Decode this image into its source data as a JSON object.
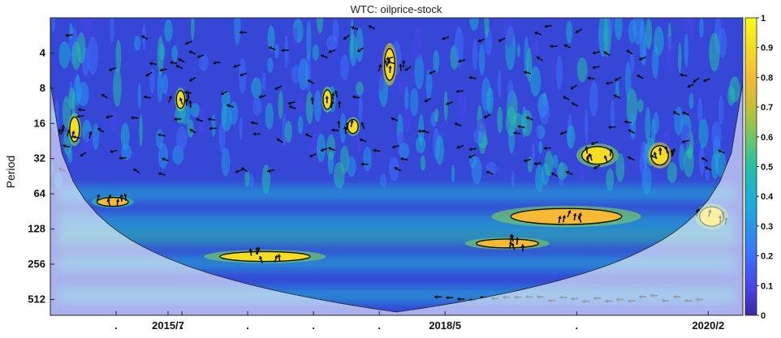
{
  "chart_data": {
    "type": "heatmap",
    "title": "WTC: oilprice-stock",
    "ylabel": "Period",
    "xlabel": "",
    "y_scale": "log2",
    "y_reversed": true,
    "ylim": [
      2,
      700
    ],
    "y_ticks": [
      {
        "value": 4,
        "label": "4"
      },
      {
        "value": 8,
        "label": "8"
      },
      {
        "value": 16,
        "label": "16"
      },
      {
        "value": 32,
        "label": "32"
      },
      {
        "value": 64,
        "label": "64"
      },
      {
        "value": 128,
        "label": "128"
      },
      {
        "value": 256,
        "label": "256"
      },
      {
        "value": 512,
        "label": "512"
      }
    ],
    "xlim": [
      0,
      1000
    ],
    "x_ticks": [
      {
        "value": 95,
        "label": "."
      },
      {
        "value": 170,
        "label": "2015/7"
      },
      {
        "value": 190,
        "label": "."
      },
      {
        "value": 285,
        "label": "."
      },
      {
        "value": 380,
        "label": "."
      },
      {
        "value": 475,
        "label": "."
      },
      {
        "value": 570,
        "label": "2018/5"
      },
      {
        "value": 760,
        "label": "."
      },
      {
        "value": 950,
        "label": "2020/2"
      }
    ],
    "colorbar": {
      "range": [
        0,
        1
      ],
      "ticks": [
        {
          "value": 0,
          "label": "0"
        },
        {
          "value": 0.1,
          "label": "0.1"
        },
        {
          "value": 0.2,
          "label": "0.2"
        },
        {
          "value": 0.3,
          "label": "0.3"
        },
        {
          "value": 0.4,
          "label": "0.4"
        },
        {
          "value": 0.5,
          "label": "0.5"
        },
        {
          "value": 0.6,
          "label": "0.6"
        },
        {
          "value": 0.7,
          "label": "0.7"
        },
        {
          "value": 0.8,
          "label": "0.8"
        },
        {
          "value": 0.9,
          "label": "0.9"
        },
        {
          "value": 1,
          "label": "1"
        }
      ],
      "colors": [
        "#3e26a8",
        "#4746eb",
        "#3c70fe",
        "#2797eb",
        "#1cafd4",
        "#25c0a5",
        "#71c766",
        "#c4c032",
        "#f5b934",
        "#f5dd22",
        "#f9fb15"
      ]
    },
    "significant_regions": [
      {
        "x": 35,
        "period": 18,
        "w": 14,
        "h_oct": 0.7,
        "coherence": 0.85
      },
      {
        "x": 90,
        "period": 75,
        "w": 45,
        "h_oct": 0.25,
        "coherence": 0.78
      },
      {
        "x": 188,
        "period": 10,
        "w": 12,
        "h_oct": 0.5,
        "coherence": 0.85
      },
      {
        "x": 310,
        "period": 220,
        "w": 130,
        "h_oct": 0.28,
        "coherence": 0.88
      },
      {
        "x": 400,
        "period": 10,
        "w": 12,
        "h_oct": 0.55,
        "coherence": 0.85
      },
      {
        "x": 437,
        "period": 17,
        "w": 15,
        "h_oct": 0.4,
        "coherence": 0.85
      },
      {
        "x": 490,
        "period": 5,
        "w": 15,
        "h_oct": 0.9,
        "coherence": 0.9
      },
      {
        "x": 660,
        "period": 170,
        "w": 90,
        "h_oct": 0.25,
        "coherence": 0.8
      },
      {
        "x": 745,
        "period": 100,
        "w": 160,
        "h_oct": 0.45,
        "coherence": 0.82
      },
      {
        "x": 790,
        "period": 30,
        "w": 45,
        "h_oct": 0.5,
        "coherence": 0.88
      },
      {
        "x": 880,
        "period": 30,
        "w": 25,
        "h_oct": 0.55,
        "coherence": 0.9
      },
      {
        "x": 955,
        "period": 100,
        "w": 35,
        "h_oct": 0.55,
        "coherence": 0.88
      }
    ]
  }
}
